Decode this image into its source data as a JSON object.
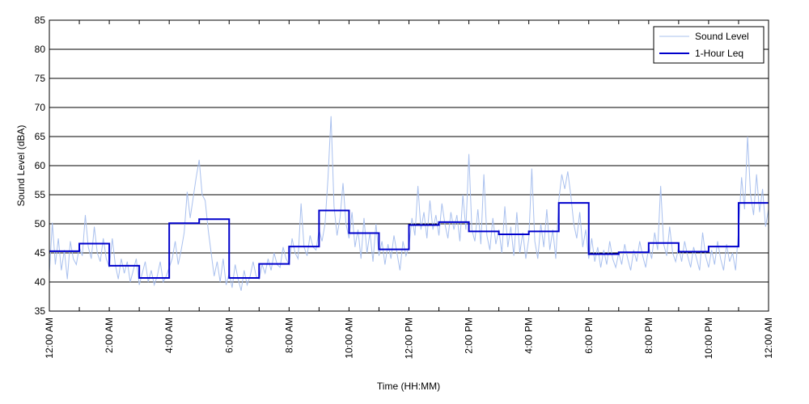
{
  "chart_data": {
    "type": "line",
    "title": "",
    "xlabel": "Time (HH:MM)",
    "ylabel": "Sound Level (dBA)",
    "ylim": [
      35,
      85
    ],
    "xlim": [
      0,
      24
    ],
    "yticks": [
      35,
      40,
      45,
      50,
      55,
      60,
      65,
      70,
      75,
      80,
      85
    ],
    "xticks": [
      {
        "hour": 0,
        "label": "12:00 AM"
      },
      {
        "hour": 2,
        "label": "2:00 AM"
      },
      {
        "hour": 4,
        "label": "4:00 AM"
      },
      {
        "hour": 6,
        "label": "6:00 AM"
      },
      {
        "hour": 8,
        "label": "8:00 AM"
      },
      {
        "hour": 10,
        "label": "10:00 AM"
      },
      {
        "hour": 12,
        "label": "12:00 PM"
      },
      {
        "hour": 14,
        "label": "2:00 PM"
      },
      {
        "hour": 16,
        "label": "4:00 PM"
      },
      {
        "hour": 18,
        "label": "6:00 PM"
      },
      {
        "hour": 20,
        "label": "8:00 PM"
      },
      {
        "hour": 22,
        "label": "10:00 PM"
      },
      {
        "hour": 24,
        "label": "12:00 AM"
      }
    ],
    "grid": "horizontal",
    "legend_position": "top-right",
    "series": [
      {
        "name": "Sound Level",
        "color": "#a9c0ee",
        "style": "thin-line",
        "points": [
          [
            0.0,
            41.5
          ],
          [
            0.1,
            50.2
          ],
          [
            0.2,
            43.0
          ],
          [
            0.3,
            47.5
          ],
          [
            0.4,
            42.0
          ],
          [
            0.5,
            45.5
          ],
          [
            0.6,
            40.5
          ],
          [
            0.7,
            47.0
          ],
          [
            0.8,
            44.0
          ],
          [
            0.9,
            43.0
          ],
          [
            1.0,
            46.0
          ],
          [
            1.1,
            44.5
          ],
          [
            1.2,
            51.5
          ],
          [
            1.3,
            46.0
          ],
          [
            1.4,
            44.0
          ],
          [
            1.5,
            49.5
          ],
          [
            1.6,
            45.0
          ],
          [
            1.7,
            43.5
          ],
          [
            1.8,
            47.5
          ],
          [
            1.9,
            44.0
          ],
          [
            2.0,
            42.5
          ],
          [
            2.1,
            47.5
          ],
          [
            2.2,
            43.0
          ],
          [
            2.3,
            40.5
          ],
          [
            2.4,
            44.0
          ],
          [
            2.5,
            41.5
          ],
          [
            2.6,
            43.5
          ],
          [
            2.7,
            40.0
          ],
          [
            2.8,
            42.0
          ],
          [
            2.9,
            44.0
          ],
          [
            3.0,
            39.5
          ],
          [
            3.1,
            41.5
          ],
          [
            3.2,
            43.5
          ],
          [
            3.3,
            40.0
          ],
          [
            3.4,
            42.0
          ],
          [
            3.5,
            39.5
          ],
          [
            3.6,
            41.0
          ],
          [
            3.7,
            43.5
          ],
          [
            3.8,
            40.0
          ],
          [
            3.9,
            41.0
          ],
          [
            4.0,
            42.5
          ],
          [
            4.1,
            44.0
          ],
          [
            4.2,
            47.0
          ],
          [
            4.3,
            43.0
          ],
          [
            4.4,
            45.5
          ],
          [
            4.5,
            48.5
          ],
          [
            4.6,
            55.5
          ],
          [
            4.7,
            51.0
          ],
          [
            4.8,
            54.5
          ],
          [
            4.9,
            58.0
          ],
          [
            5.0,
            61.0
          ],
          [
            5.1,
            55.0
          ],
          [
            5.2,
            54.0
          ],
          [
            5.3,
            49.0
          ],
          [
            5.4,
            45.0
          ],
          [
            5.5,
            41.0
          ],
          [
            5.6,
            43.5
          ],
          [
            5.7,
            40.0
          ],
          [
            5.8,
            44.0
          ],
          [
            5.9,
            39.5
          ],
          [
            6.0,
            41.5
          ],
          [
            6.1,
            39.0
          ],
          [
            6.2,
            43.0
          ],
          [
            6.3,
            40.5
          ],
          [
            6.4,
            38.5
          ],
          [
            6.5,
            42.0
          ],
          [
            6.6,
            39.5
          ],
          [
            6.7,
            41.0
          ],
          [
            6.8,
            43.5
          ],
          [
            6.9,
            41.0
          ],
          [
            7.0,
            40.5
          ],
          [
            7.1,
            43.0
          ],
          [
            7.2,
            41.5
          ],
          [
            7.3,
            44.0
          ],
          [
            7.4,
            42.0
          ],
          [
            7.5,
            45.0
          ],
          [
            7.6,
            43.0
          ],
          [
            7.7,
            42.5
          ],
          [
            7.8,
            46.0
          ],
          [
            7.9,
            44.0
          ],
          [
            8.0,
            43.0
          ],
          [
            8.1,
            47.5
          ],
          [
            8.2,
            45.0
          ],
          [
            8.3,
            44.0
          ],
          [
            8.4,
            53.5
          ],
          [
            8.5,
            46.0
          ],
          [
            8.6,
            44.5
          ],
          [
            8.7,
            48.0
          ],
          [
            8.8,
            46.0
          ],
          [
            8.9,
            45.5
          ],
          [
            9.0,
            49.0
          ],
          [
            9.1,
            47.0
          ],
          [
            9.2,
            50.0
          ],
          [
            9.3,
            58.0
          ],
          [
            9.4,
            68.5
          ],
          [
            9.5,
            53.0
          ],
          [
            9.6,
            48.0
          ],
          [
            9.7,
            51.0
          ],
          [
            9.8,
            57.0
          ],
          [
            9.9,
            50.0
          ],
          [
            10.0,
            47.5
          ],
          [
            10.1,
            52.0
          ],
          [
            10.2,
            46.0
          ],
          [
            10.3,
            49.0
          ],
          [
            10.4,
            44.0
          ],
          [
            10.5,
            51.0
          ],
          [
            10.6,
            45.0
          ],
          [
            10.7,
            48.5
          ],
          [
            10.8,
            43.5
          ],
          [
            10.9,
            50.0
          ],
          [
            11.0,
            44.5
          ],
          [
            11.1,
            47.0
          ],
          [
            11.2,
            43.0
          ],
          [
            11.3,
            46.5
          ],
          [
            11.4,
            44.0
          ],
          [
            11.5,
            48.0
          ],
          [
            11.6,
            45.0
          ],
          [
            11.7,
            42.0
          ],
          [
            11.8,
            47.0
          ],
          [
            11.9,
            44.5
          ],
          [
            12.0,
            46.0
          ],
          [
            12.1,
            51.0
          ],
          [
            12.2,
            48.0
          ],
          [
            12.3,
            56.5
          ],
          [
            12.4,
            49.0
          ],
          [
            12.5,
            52.0
          ],
          [
            12.6,
            47.5
          ],
          [
            12.7,
            54.0
          ],
          [
            12.8,
            49.0
          ],
          [
            12.9,
            51.5
          ],
          [
            13.0,
            48.0
          ],
          [
            13.1,
            53.5
          ],
          [
            13.2,
            50.0
          ],
          [
            13.3,
            47.5
          ],
          [
            13.4,
            52.0
          ],
          [
            13.5,
            49.0
          ],
          [
            13.6,
            51.5
          ],
          [
            13.7,
            47.0
          ],
          [
            13.8,
            55.0
          ],
          [
            13.9,
            49.0
          ],
          [
            14.0,
            62.0
          ],
          [
            14.1,
            49.0
          ],
          [
            14.2,
            47.0
          ],
          [
            14.3,
            52.5
          ],
          [
            14.4,
            46.5
          ],
          [
            14.5,
            58.5
          ],
          [
            14.6,
            48.0
          ],
          [
            14.7,
            45.5
          ],
          [
            14.8,
            51.0
          ],
          [
            14.9,
            46.5
          ],
          [
            15.0,
            49.0
          ],
          [
            15.1,
            45.0
          ],
          [
            15.2,
            53.0
          ],
          [
            15.3,
            46.0
          ],
          [
            15.4,
            49.5
          ],
          [
            15.5,
            44.5
          ],
          [
            15.6,
            52.0
          ],
          [
            15.7,
            45.0
          ],
          [
            15.8,
            48.5
          ],
          [
            15.9,
            44.0
          ],
          [
            16.0,
            47.5
          ],
          [
            16.1,
            59.5
          ],
          [
            16.2,
            47.0
          ],
          [
            16.3,
            44.0
          ],
          [
            16.4,
            50.0
          ],
          [
            16.5,
            46.0
          ],
          [
            16.6,
            52.5
          ],
          [
            16.7,
            45.5
          ],
          [
            16.8,
            49.0
          ],
          [
            16.9,
            44.0
          ],
          [
            17.0,
            54.0
          ],
          [
            17.1,
            58.5
          ],
          [
            17.2,
            56.0
          ],
          [
            17.3,
            59.0
          ],
          [
            17.4,
            55.0
          ],
          [
            17.5,
            50.0
          ],
          [
            17.6,
            47.5
          ],
          [
            17.7,
            52.0
          ],
          [
            17.8,
            46.0
          ],
          [
            17.9,
            49.0
          ],
          [
            18.0,
            44.0
          ],
          [
            18.1,
            47.5
          ],
          [
            18.2,
            43.5
          ],
          [
            18.3,
            46.0
          ],
          [
            18.4,
            42.5
          ],
          [
            18.5,
            45.5
          ],
          [
            18.6,
            43.0
          ],
          [
            18.7,
            47.0
          ],
          [
            18.8,
            44.0
          ],
          [
            18.9,
            42.5
          ],
          [
            19.0,
            45.0
          ],
          [
            19.1,
            43.0
          ],
          [
            19.2,
            46.5
          ],
          [
            19.3,
            44.0
          ],
          [
            19.4,
            42.0
          ],
          [
            19.5,
            45.5
          ],
          [
            19.6,
            43.5
          ],
          [
            19.7,
            47.0
          ],
          [
            19.8,
            44.5
          ],
          [
            19.9,
            42.5
          ],
          [
            20.0,
            46.0
          ],
          [
            20.1,
            44.0
          ],
          [
            20.2,
            48.5
          ],
          [
            20.3,
            45.5
          ],
          [
            20.4,
            56.5
          ],
          [
            20.5,
            46.5
          ],
          [
            20.6,
            44.5
          ],
          [
            20.7,
            49.5
          ],
          [
            20.8,
            45.0
          ],
          [
            20.9,
            43.5
          ],
          [
            21.0,
            46.0
          ],
          [
            21.1,
            43.5
          ],
          [
            21.2,
            47.0
          ],
          [
            21.3,
            44.5
          ],
          [
            21.4,
            42.5
          ],
          [
            21.5,
            46.0
          ],
          [
            21.6,
            44.0
          ],
          [
            21.7,
            42.0
          ],
          [
            21.8,
            48.5
          ],
          [
            21.9,
            44.5
          ],
          [
            22.0,
            42.5
          ],
          [
            22.1,
            45.5
          ],
          [
            22.2,
            43.0
          ],
          [
            22.3,
            47.0
          ],
          [
            22.4,
            44.0
          ],
          [
            22.5,
            42.0
          ],
          [
            22.6,
            46.5
          ],
          [
            22.7,
            43.5
          ],
          [
            22.8,
            45.0
          ],
          [
            22.9,
            42.0
          ],
          [
            23.0,
            49.0
          ],
          [
            23.1,
            58.0
          ],
          [
            23.2,
            52.5
          ],
          [
            23.3,
            65.0
          ],
          [
            23.4,
            55.0
          ],
          [
            23.5,
            51.5
          ],
          [
            23.6,
            58.5
          ],
          [
            23.7,
            52.0
          ],
          [
            23.8,
            56.0
          ],
          [
            23.9,
            49.5
          ],
          [
            24.0,
            52.5
          ]
        ]
      },
      {
        "name": "1-Hour Leq",
        "color": "#0000cc",
        "style": "step",
        "hourly_values": [
          45.3,
          46.6,
          42.8,
          40.7,
          50.1,
          50.8,
          40.7,
          43.1,
          46.1,
          52.3,
          48.4,
          45.6,
          49.8,
          50.3,
          48.7,
          48.2,
          48.7,
          53.6,
          44.8,
          45.1,
          46.7,
          45.2,
          46.1,
          53.6
        ]
      }
    ]
  }
}
